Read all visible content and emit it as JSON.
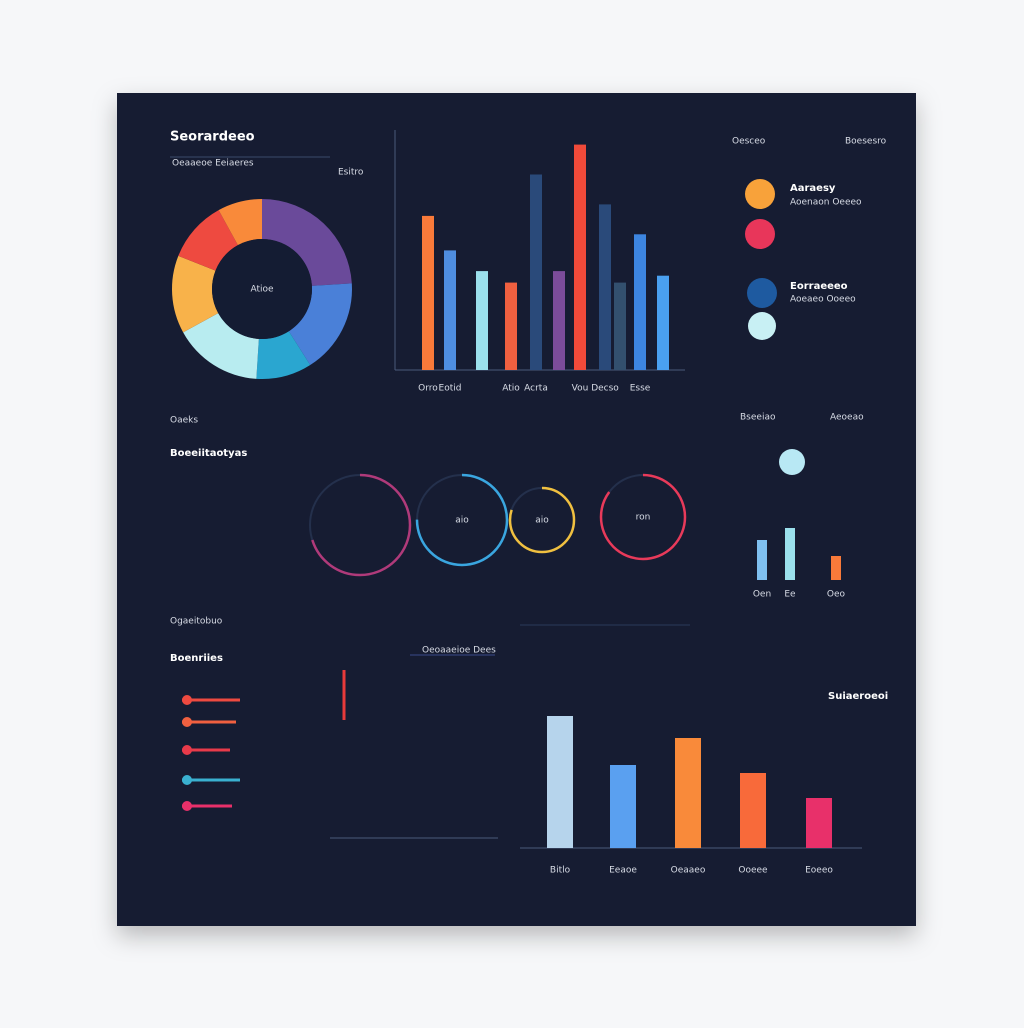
{
  "header": {
    "title": "Seorardeeo",
    "subtitle": "Esitro",
    "note": "Oeaaeoe Eeiaeres"
  },
  "top_right": {
    "heading_left": "Oesceo",
    "heading_right": "Boesesro",
    "legend": [
      "Aaraesy",
      "Aoenaon Oeeeo",
      "Eorraeeeo",
      "Aoeaeo Ooeeo"
    ]
  },
  "middle": {
    "label": "Oaeks",
    "title": "Boeeiitaotyas",
    "right_labels": [
      "Bseeiao",
      "Aeoeao"
    ]
  },
  "bottom": {
    "label": "Ogaeitobuo",
    "title": "Boenriies",
    "right_title": "Suiaeroeoi",
    "list_heading": "Oeoaaeioe Dees"
  },
  "chart_data": [
    {
      "type": "donut",
      "center_label": "Atioe",
      "values": [
        24,
        17,
        10,
        16,
        14,
        11,
        8
      ],
      "colors": [
        "#6a4a9a",
        "#4a80d8",
        "#2aa6d0",
        "#b8ecf0",
        "#f8b24a",
        "#ee4a40",
        "#f98a3a"
      ]
    },
    {
      "type": "bar",
      "categories": [
        "Orro",
        "Eotid",
        null,
        "Atio",
        "Acrta",
        null,
        "Vou",
        "Decso",
        null,
        "Esse",
        null
      ],
      "values": [
        67,
        52,
        43,
        38,
        85,
        43,
        98,
        72,
        38,
        59,
        41
      ],
      "colors": [
        "#f97a3a",
        "#4f8ee0",
        "#9be0ec",
        "#f06040",
        "#2a4a7a",
        "#7b4c9a",
        "#f04a3a",
        "#2a4a7a",
        "#33506e",
        "#3d85e0",
        "#4aa0f0"
      ],
      "ylim": [
        0,
        100
      ]
    },
    {
      "type": "ring",
      "labels": [
        null,
        "aio",
        "aio",
        "ron"
      ],
      "values": [
        70,
        75,
        80,
        85
      ],
      "colors": [
        "#b03a7a",
        "#3aa6e0",
        "#f0c040",
        "#e83a5a"
      ]
    },
    {
      "type": "bar",
      "categories": [
        "Oen",
        "Ee",
        "Oeo"
      ],
      "values": [
        40,
        52,
        24
      ],
      "colors": [
        "#7fc0f0",
        "#9be0ec",
        "#f97a3a"
      ],
      "ylim": [
        0,
        60
      ]
    },
    {
      "type": "bar",
      "categories": [
        "Bitlo",
        "Eeaoe",
        "Oeaaeo",
        "Ooeee",
        "Eoeeo"
      ],
      "values": [
        132,
        83,
        110,
        75,
        50
      ],
      "colors": [
        "#b6d4ec",
        "#5aa0f0",
        "#f98a3a",
        "#f86a3a",
        "#e8306a"
      ],
      "ylim": [
        0,
        150
      ]
    }
  ]
}
